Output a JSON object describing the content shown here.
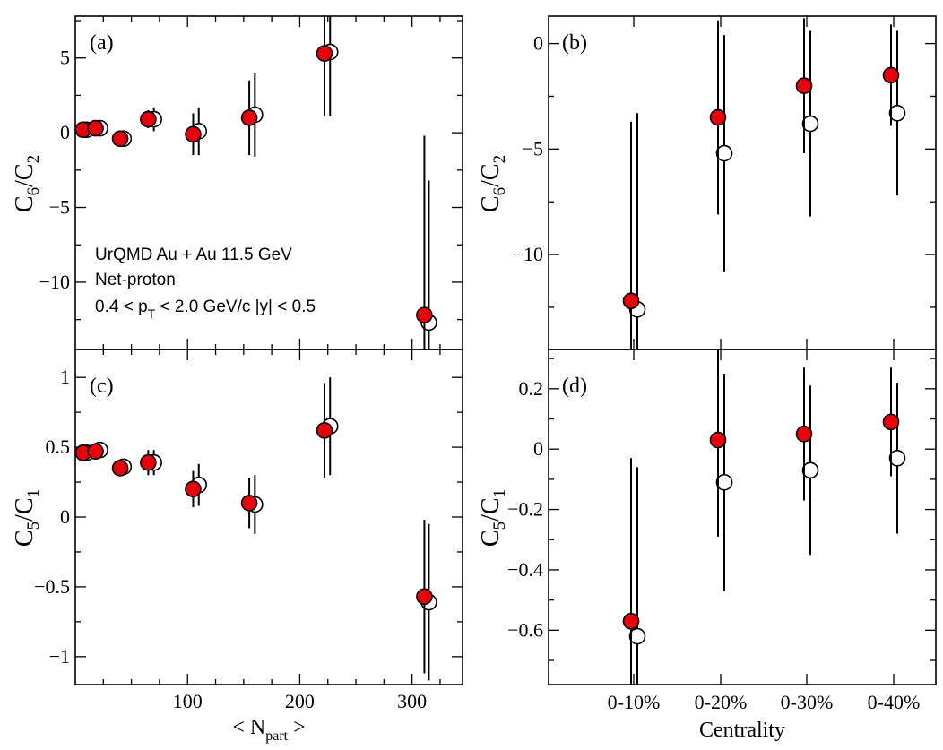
{
  "figure": {
    "annotation": {
      "line1": "UrQMD Au + Au 11.5 GeV",
      "line2": "Net-proton",
      "line3_pre": "0.4 < p",
      "line3_sub": "T",
      "line3_post": " < 2.0 GeV/c  |y| < 0.5"
    },
    "colors": {
      "filled": "#e8000b",
      "open": "#ffffff",
      "stroke": "#000000"
    }
  },
  "chart_data": [
    {
      "id": "a",
      "panel_label": "(a)",
      "type": "scatter",
      "ylabel": {
        "main": "C",
        "sub1": "6",
        "mid": "/C",
        "sub2": "2"
      },
      "xlim": [
        0,
        345
      ],
      "ylim": [
        -14.5,
        7.8
      ],
      "yticks": [
        5,
        0,
        -5,
        -10
      ],
      "ytick_labels": [
        "5",
        "0",
        "−5",
        "−10"
      ],
      "series": [
        {
          "name": "filled",
          "x": [
            7,
            18,
            40,
            65,
            105,
            155,
            222,
            311
          ],
          "y": [
            0.2,
            0.3,
            -0.4,
            0.9,
            -0.1,
            1.0,
            5.3,
            -12.2
          ],
          "err": [
            0.4,
            0.5,
            0.4,
            0.6,
            1.4,
            2.5,
            4.2,
            12.0
          ]
        },
        {
          "name": "open",
          "x": [
            10,
            22,
            43,
            70,
            110,
            160,
            227,
            315
          ],
          "y": [
            0.2,
            0.3,
            -0.4,
            0.9,
            0.1,
            1.2,
            5.4,
            -12.7
          ],
          "err": [
            0.4,
            0.5,
            0.4,
            0.8,
            1.6,
            2.8,
            4.3,
            9.5
          ]
        }
      ]
    },
    {
      "id": "b",
      "panel_label": "(b)",
      "type": "scatter",
      "ylabel": {
        "main": "C",
        "sub1": "6",
        "mid": "/C",
        "sub2": "2"
      },
      "categories": [
        "0-10%",
        "0-20%",
        "0-30%",
        "0-40%"
      ],
      "ylim": [
        -14.5,
        1.3
      ],
      "yticks": [
        0,
        -5,
        -10
      ],
      "ytick_labels": [
        "0",
        "−5",
        "−10"
      ],
      "series": [
        {
          "name": "filled",
          "y": [
            -12.2,
            -3.5,
            -2.0,
            -1.5
          ],
          "err": [
            8.5,
            4.6,
            3.2,
            2.4
          ]
        },
        {
          "name": "open",
          "y": [
            -12.6,
            -5.2,
            -3.8,
            -3.3
          ],
          "err": [
            9.3,
            5.6,
            4.4,
            3.9
          ]
        }
      ]
    },
    {
      "id": "c",
      "panel_label": "(c)",
      "type": "scatter",
      "ylabel": {
        "main": "C",
        "sub1": "5",
        "mid": "/C",
        "sub2": "1"
      },
      "xlim": [
        0,
        345
      ],
      "ylim": [
        -1.2,
        1.2
      ],
      "xticks": [
        100,
        200,
        300
      ],
      "xtick_labels": [
        "100",
        "200",
        "300"
      ],
      "xlabel": {
        "pre": "< N",
        "sub": "part",
        "post": " >"
      },
      "yticks": [
        1,
        0.5,
        0,
        -0.5,
        -1
      ],
      "ytick_labels": [
        "1",
        "0.5",
        "0",
        "−0.5",
        "−1"
      ],
      "series": [
        {
          "name": "filled",
          "x": [
            7,
            18,
            40,
            65,
            105,
            155,
            222,
            311
          ],
          "y": [
            0.46,
            0.47,
            0.35,
            0.39,
            0.2,
            0.1,
            0.62,
            -0.57
          ],
          "err": [
            0.04,
            0.05,
            0.05,
            0.09,
            0.13,
            0.18,
            0.34,
            0.55
          ]
        },
        {
          "name": "open",
          "x": [
            10,
            22,
            43,
            70,
            110,
            160,
            227,
            315
          ],
          "y": [
            0.46,
            0.48,
            0.36,
            0.39,
            0.23,
            0.09,
            0.65,
            -0.61
          ],
          "err": [
            0.04,
            0.05,
            0.05,
            0.09,
            0.15,
            0.21,
            0.35,
            0.56
          ]
        }
      ]
    },
    {
      "id": "d",
      "panel_label": "(d)",
      "type": "scatter",
      "ylabel": {
        "main": "C",
        "sub1": "5",
        "mid": "/C",
        "sub2": "1"
      },
      "categories": [
        "0-10%",
        "0-20%",
        "0-30%",
        "0-40%"
      ],
      "xlabel": {
        "pre": "Centrality"
      },
      "ylim": [
        -0.78,
        0.33
      ],
      "yticks": [
        0.2,
        0,
        -0.2,
        -0.4,
        -0.6
      ],
      "ytick_labels": [
        "0.2",
        "0",
        "−0.2",
        "−0.4",
        "−0.6"
      ],
      "series": [
        {
          "name": "filled",
          "y": [
            -0.57,
            0.03,
            0.05,
            0.09
          ],
          "err": [
            0.54,
            0.32,
            0.22,
            0.18
          ]
        },
        {
          "name": "open",
          "y": [
            -0.62,
            -0.11,
            -0.07,
            -0.03
          ],
          "err": [
            0.56,
            0.36,
            0.28,
            0.25
          ]
        }
      ]
    }
  ]
}
